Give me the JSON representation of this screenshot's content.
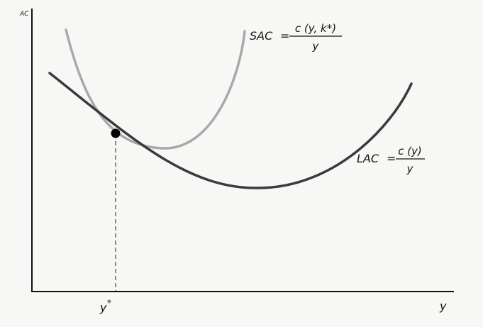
{
  "axes": {
    "y_label": "AC",
    "x_label": "y"
  },
  "tick": {
    "label": "y",
    "superscript": "*"
  },
  "curves": {
    "sac": {
      "name": "SAC",
      "equals": "=",
      "numerator": "c (y, k*)",
      "denominator": "y",
      "color": "#a9a9a9"
    },
    "lac": {
      "name": "LAC",
      "equals": "=",
      "numerator": "c (y)",
      "denominator": "y",
      "color": "#3b3b3b"
    }
  },
  "colors": {
    "axis": "#111111",
    "background": "#f7f7f5",
    "tangency_point": "#000000"
  }
}
